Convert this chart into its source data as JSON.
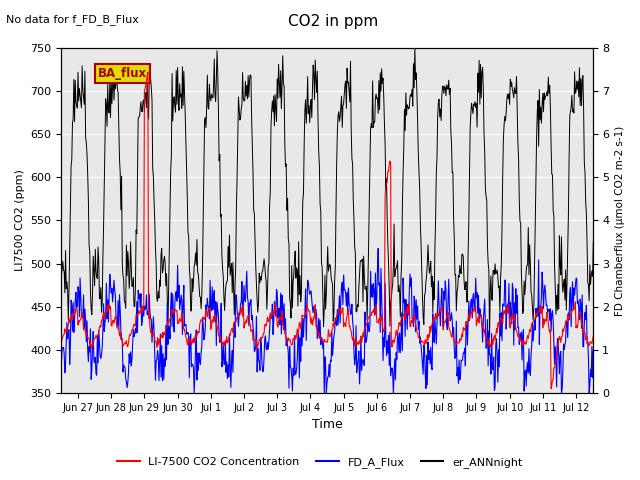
{
  "title": "CO2 in ppm",
  "no_data_text": "No data for f_FD_B_Flux",
  "xlabel": "Time",
  "ylabel_left": "LI7500 CO2 (ppm)",
  "ylabel_right": "FD Chamberflux (µmol CO2 m-2 s-1)",
  "ylim_left": [
    350,
    750
  ],
  "ylim_right": [
    0.0,
    8.0
  ],
  "yticks_left": [
    350,
    400,
    450,
    500,
    550,
    600,
    650,
    700,
    750
  ],
  "yticks_right": [
    0.0,
    1.0,
    2.0,
    3.0,
    4.0,
    5.0,
    6.0,
    7.0,
    8.0
  ],
  "legend_entries": [
    "LI-7500 CO2 Concentration",
    "FD_A_Flux",
    "er_ANNnight"
  ],
  "legend_colors": [
    "red",
    "blue",
    "black"
  ],
  "box_label": "BA_flux",
  "box_color": "#dddd00",
  "box_text_color": "#aa0000",
  "bg_color": "#e8e8e8",
  "line_colors": [
    "red",
    "blue",
    "black"
  ],
  "xtick_labels": [
    "Jun 27",
    "Jun 28",
    "Jun 29",
    "Jun 30",
    "Jul 1",
    "Jul 2",
    "Jul 3",
    "Jul 4",
    "Jul 5",
    "Jul 6",
    "Jul 7",
    "Jul 8",
    "Jul 9",
    "Jul 10",
    "Jul 11",
    "Jul 12"
  ],
  "figsize": [
    6.4,
    4.8
  ],
  "dpi": 100
}
